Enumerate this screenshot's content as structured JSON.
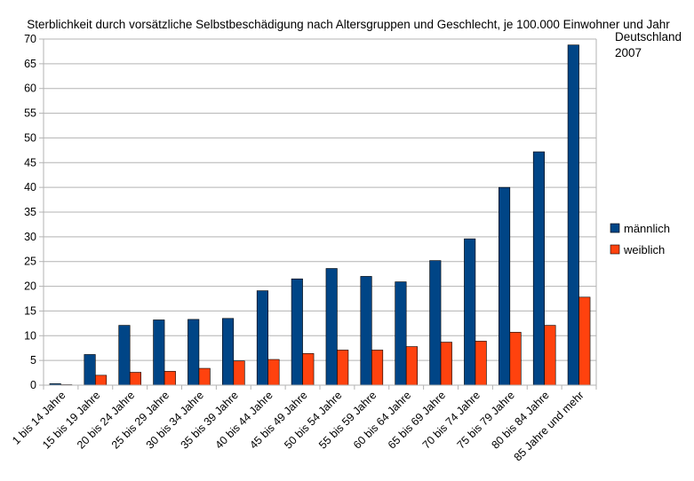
{
  "chart_data": {
    "type": "bar",
    "title": "Sterblichkeit durch vorsätzliche Selbstbeschädigung nach Altersgruppen und Geschlecht, je 100.000 Einwohner und Jahr",
    "subtitle_lines": [
      "Deutschland",
      "2007"
    ],
    "xlabel": "",
    "ylabel": "",
    "ylim": [
      0,
      70
    ],
    "yticks": [
      0,
      5,
      10,
      15,
      20,
      25,
      30,
      35,
      40,
      45,
      50,
      55,
      60,
      65,
      70
    ],
    "grid": true,
    "legend_position": "right",
    "categories": [
      "1 bis 14 Jahre",
      "15 bis 19 Jahre",
      "20 bis 24 Jahre",
      "25 bis 29 Jahre",
      "30 bis 34 Jahre",
      "35 bis 39 Jahre",
      "40 bis 44 Jahre",
      "45 bis 49 Jahre",
      "50 bis 54 Jahre",
      "55 bis 59 Jahre",
      "60 bis 64 Jahre",
      "65 bis 69 Jahre",
      "70 bis 74 Jahre",
      "75 bis 79 Jahre",
      "80 bis 84 Jahre",
      "85 Jahre und mehr"
    ],
    "series": [
      {
        "name": "männlich",
        "color": "#004586",
        "values": [
          0.3,
          6.2,
          12.1,
          13.2,
          13.3,
          13.5,
          19.1,
          21.5,
          23.6,
          22.0,
          20.9,
          25.2,
          29.6,
          40.0,
          47.2,
          68.8
        ]
      },
      {
        "name": "weiblich",
        "color": "#ff420e",
        "values": [
          0.1,
          2.0,
          2.6,
          2.8,
          3.4,
          4.9,
          5.2,
          6.4,
          7.1,
          7.1,
          7.8,
          8.7,
          8.9,
          10.7,
          12.1,
          17.8
        ]
      }
    ]
  }
}
